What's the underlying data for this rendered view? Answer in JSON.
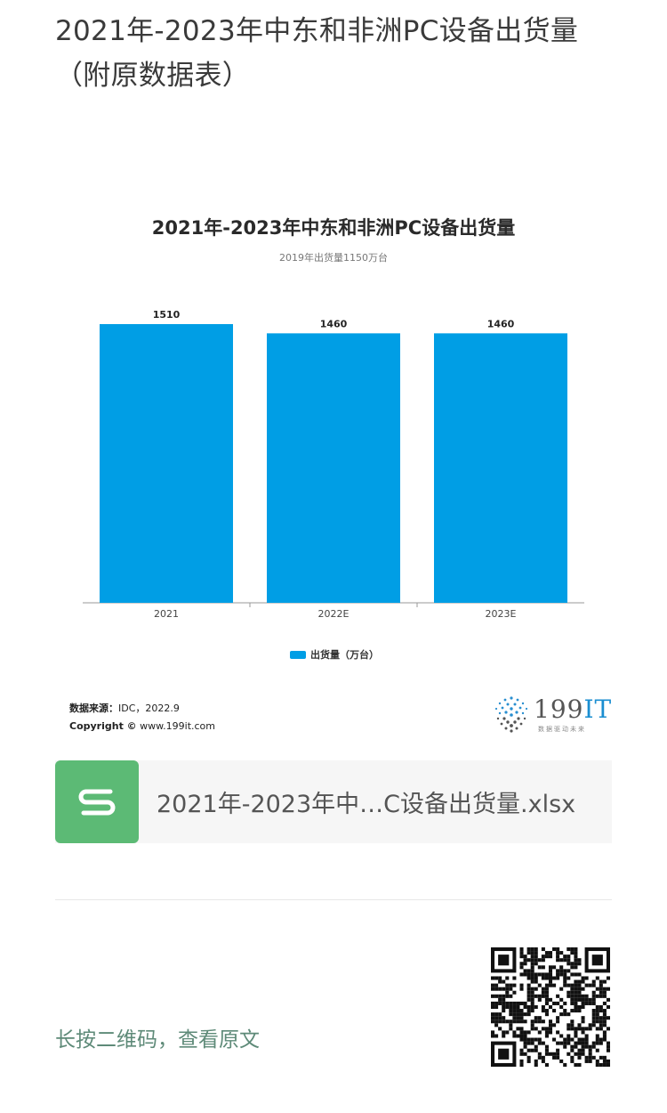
{
  "article": {
    "title_line1": "2021年-2023年中东和非洲PC设备出货量",
    "title_line2": "（附原数据表）"
  },
  "chart_data": {
    "type": "bar",
    "title": "2021年-2023年中东和非洲PC设备出货量",
    "subtitle": "2019年出货量1150万台",
    "categories": [
      "2021",
      "2022E",
      "2023E"
    ],
    "series": [
      {
        "name": "出货量（万台）",
        "values": [
          1510,
          1460,
          1460
        ],
        "color": "#009ee5"
      }
    ],
    "ylim": [
      0,
      1510
    ],
    "grid": false,
    "legend": "bottom"
  },
  "chart_footer": {
    "source_label": "数据来源：",
    "source_value": "IDC，2022.9",
    "copyright_label": "Copyright ©",
    "copyright_value": "www.199it.com",
    "brand_name_digits": "199",
    "brand_name_letters": "IT",
    "brand_tagline": "数据驱动未来"
  },
  "attachment": {
    "file_name": "2021年-2023年中…C设备出货量.xlsx",
    "icon": "spreadsheet-s-icon",
    "icon_color": "#5cba75"
  },
  "footer": {
    "qr_caption": "长按二维码，查看原文",
    "qr_icon": "qr-code-icon"
  }
}
